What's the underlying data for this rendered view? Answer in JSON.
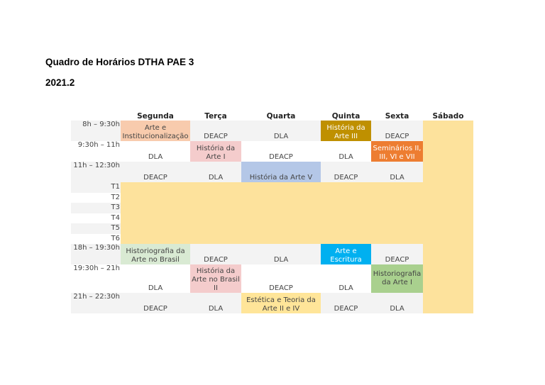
{
  "title": "Quadro de Horários DTHA PAE 3",
  "term": "2021.2",
  "days": [
    "Segunda",
    "Terça",
    "Quarta",
    "Quinta",
    "Sexta",
    "Sábado"
  ],
  "rows": {
    "r1": {
      "time": "8h – 9:30h",
      "mon": "Arte e Institucionalização",
      "tue": "DEACP",
      "wed": "DLA",
      "thu": "História da Arte III",
      "fri": "DEACP"
    },
    "r2": {
      "time": "9:30h – 11h",
      "mon": "DLA",
      "tue": "História da Arte I",
      "wed": "DEACP",
      "thu": "DLA",
      "fri": "Seminários II, III, VI e VII"
    },
    "r3": {
      "time": "11h – 12:30h",
      "mon": "DEACP",
      "tue": "DLA",
      "wed": "História da Arte V",
      "thu": "DEACP",
      "fri": "DLA"
    },
    "t": [
      "T1",
      "T2",
      "T3",
      "T4",
      "T5",
      "T6"
    ],
    "r4": {
      "time": "18h – 19:30h",
      "mon": "Historiografia da Arte no Brasil",
      "tue": "DEACP",
      "wed": "DLA",
      "thu": "Arte e Escritura",
      "fri": "DEACP"
    },
    "r5": {
      "time": "19:30h – 21h",
      "mon": "DLA",
      "tue": "História da Arte no Brasil II",
      "wed": "DEACP",
      "thu": "DLA",
      "fri": "Historiografia da Arte I"
    },
    "r6": {
      "time": "21h – 22:30h",
      "mon": "DEACP",
      "tue": "DLA",
      "wed": "Estética e Teoria da Arte II e IV",
      "thu": "DEACP",
      "fri": "DLA"
    }
  },
  "colors": {
    "saturday": "#fde29c",
    "arte_institucionalizacao": "#f8cbad",
    "historia_arte_i": "#f4cccc",
    "historia_arte_iii": "#bf9000",
    "historia_arte_v": "#b4c7e7",
    "seminarios": "#ed7d31",
    "historiografia_brasil": "#d9ead3",
    "arte_escritura": "#00b0f0",
    "historiografia_arte_i": "#a9d08e",
    "estetica": "#ffe599"
  }
}
